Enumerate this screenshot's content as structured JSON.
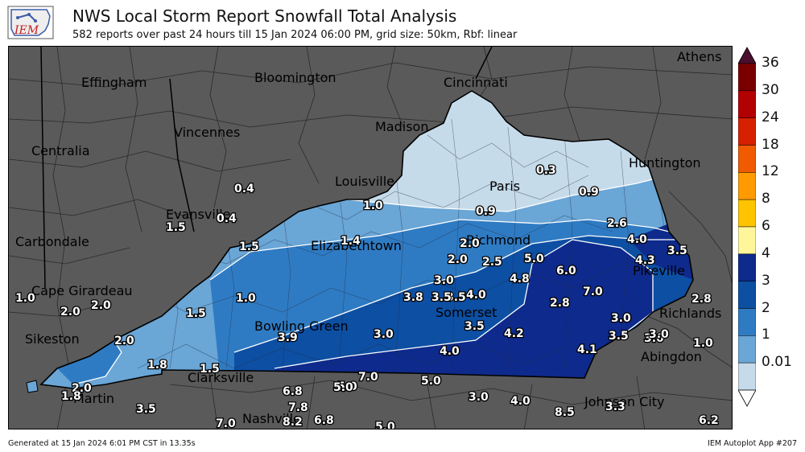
{
  "header": {
    "logo_text": "IEM",
    "title": "NWS Local Storm Report Snowfall Total Analysis",
    "subtitle": "582 reports over past 24 hours till 15 Jan 2024 06:00 PM, grid size: 50km, Rbf: linear"
  },
  "colorbar": {
    "levels": [
      "36",
      "30",
      "24",
      "18",
      "12",
      "8",
      "6",
      "4",
      "3",
      "2",
      "1",
      "0.01"
    ],
    "colors": [
      "#4a0f2e",
      "#7a0000",
      "#b30000",
      "#d62000",
      "#f05a00",
      "#ff9a00",
      "#ffc400",
      "#fff59a",
      "#0e2a8c",
      "#0d4fa3",
      "#2f7bc3",
      "#6aa6d6",
      "#c6dbea",
      "#ffffff"
    ]
  },
  "cities": [
    {
      "name": "Athens"
    },
    {
      "name": "Effingham"
    },
    {
      "name": "Bloomington"
    },
    {
      "name": "Cincinnati"
    },
    {
      "name": "Vincennes"
    },
    {
      "name": "Madison"
    },
    {
      "name": "Centralia"
    },
    {
      "name": "Louisville"
    },
    {
      "name": "Paris"
    },
    {
      "name": "Huntington"
    },
    {
      "name": "Evansville"
    },
    {
      "name": "Carbondale"
    },
    {
      "name": "Elizabethtown"
    },
    {
      "name": "Richmond"
    },
    {
      "name": "Pikeville"
    },
    {
      "name": "Cape Girardeau"
    },
    {
      "name": "Somerset"
    },
    {
      "name": "Richlands"
    },
    {
      "name": "Bowling Green"
    },
    {
      "name": "Sikeston"
    },
    {
      "name": "Abingdon"
    },
    {
      "name": "Clarksville"
    },
    {
      "name": "Martin"
    },
    {
      "name": "Johnson City"
    },
    {
      "name": "Nashville"
    }
  ],
  "values": [
    "0.3",
    "0.4",
    "0.9",
    "1.0",
    "0.9",
    "2.6",
    "0.4",
    "1.5",
    "1.5",
    "1.4",
    "2.0",
    "4.0",
    "3.5",
    "4.3",
    "2.0",
    "2.5",
    "5.0",
    "6.0",
    "4.0",
    "3.5",
    "3.0",
    "4.8",
    "1.0",
    "2.0",
    "2.0",
    "3.8",
    "3.5",
    "4.0",
    "7.0",
    "2.8",
    "2.8",
    "1.5",
    "1.0",
    "3.0",
    "3.0",
    "3.5",
    "3.9",
    "3.0",
    "4.2",
    "3.5",
    "3.0",
    "1.0",
    "2.0",
    "4.0",
    "4.1",
    "1.8",
    "1.5",
    "2.0",
    "7.0",
    "5.0",
    "5.0",
    "1.8",
    "6.8",
    "5.0",
    "3.0",
    "4.0",
    "3.5",
    "7.8",
    "8.5",
    "3.3",
    "8.2",
    "6.8",
    "7.0",
    "5.0",
    "6.2"
  ],
  "footer": {
    "generated": "Generated at 15 Jan 2024 6:01 PM CST in 13.35s",
    "app": "IEM Autoplot App #207"
  }
}
